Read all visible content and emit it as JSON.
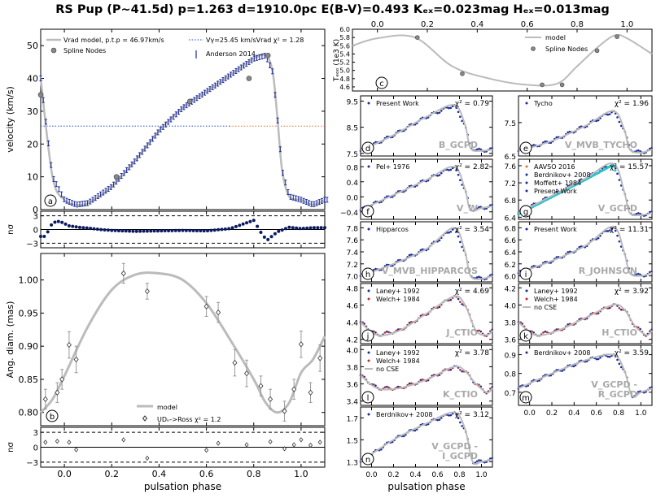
{
  "title": "RS Pup (P~41.5d) p=1.263 d=1910.0pc E(B-V)=0.493 Kₑₓ=0.023mag Hₑₓ=0.013mag",
  "chart_data": [
    {
      "id": "velocity",
      "type": "scatter",
      "panel_letter": "a",
      "xlabel": "",
      "ylabel": "velocity (km/s)",
      "xlim": [
        -0.1,
        1.1
      ],
      "ylim": [
        0,
        55
      ],
      "yticks": [
        0,
        10,
        20,
        30,
        40,
        50
      ],
      "legend": [
        "Vrad model, p.t.p = 46.97km/s",
        "Spline Nodes",
        "Vγ=25.45 km/sVrad χ² = 1.28",
        "Anderson 2014"
      ],
      "gamma_velocity": 25.45,
      "model_x": [
        -0.1,
        -0.05,
        0.0,
        0.05,
        0.1,
        0.2,
        0.3,
        0.4,
        0.5,
        0.6,
        0.7,
        0.8,
        0.85,
        0.88,
        0.9,
        0.92,
        0.95,
        1.0,
        1.05,
        1.1
      ],
      "model_y": [
        40,
        10,
        3,
        1.5,
        2,
        7,
        15,
        24,
        31,
        36,
        41,
        46,
        47,
        42,
        28,
        12,
        4,
        3,
        1.5,
        3
      ],
      "nodes_x": [
        -0.1,
        0.22,
        0.53,
        0.78,
        0.86
      ],
      "nodes_y": [
        35,
        10,
        33,
        40,
        47
      ]
    },
    {
      "id": "velocity_residual",
      "type": "scatter",
      "ylabel": "nσ",
      "xlim": [
        -0.1,
        1.1
      ],
      "ylim": [
        -4,
        4
      ],
      "yticks": [
        -3,
        0,
        3
      ],
      "x": [
        -0.08,
        -0.05,
        -0.02,
        0.02,
        0.06,
        0.1,
        0.15,
        0.2,
        0.3,
        0.4,
        0.5,
        0.6,
        0.7,
        0.8,
        0.84,
        0.86,
        0.9,
        0.95,
        1.0,
        1.05
      ],
      "y": [
        -1.5,
        1.5,
        1.8,
        0.8,
        0.5,
        0.3,
        0.0,
        -0.2,
        -0.4,
        -0.3,
        -0.2,
        -0.3,
        0.2,
        2.0,
        -1.5,
        -2.2,
        -0.5,
        0.5,
        0.2,
        0.4
      ]
    },
    {
      "id": "angular_diameter",
      "type": "scatter",
      "panel_letter": "b",
      "xlabel": "pulsation phase",
      "ylabel": "Ang. diam. (mas)",
      "xlim": [
        -0.1,
        1.1
      ],
      "ylim": [
        0.78,
        1.04
      ],
      "yticks": [
        0.8,
        0.85,
        0.9,
        0.95,
        1.0
      ],
      "xticks": [
        0.0,
        0.2,
        0.4,
        0.6,
        0.8,
        1.0
      ],
      "legend": [
        "model",
        "UDᵢᵣ->Ross χ² = 1.2"
      ],
      "model_x": [
        -0.1,
        -0.05,
        0.0,
        0.1,
        0.2,
        0.3,
        0.4,
        0.5,
        0.6,
        0.7,
        0.8,
        0.85,
        0.9,
        0.95,
        1.0,
        1.05,
        1.1
      ],
      "model_y": [
        0.8,
        0.82,
        0.855,
        0.93,
        0.985,
        1.008,
        1.01,
        1.0,
        0.965,
        0.91,
        0.85,
        0.815,
        0.8,
        0.815,
        0.86,
        0.88,
        0.915
      ],
      "x": [
        -0.08,
        -0.03,
        -0.01,
        0.02,
        0.05,
        0.25,
        0.35,
        0.6,
        0.65,
        0.72,
        0.77,
        0.83,
        0.87,
        0.93,
        0.97,
        1.0,
        1.04,
        1.08
      ],
      "y": [
        0.82,
        0.83,
        0.85,
        0.902,
        0.88,
        1.01,
        0.983,
        0.96,
        0.951,
        0.875,
        0.859,
        0.84,
        0.82,
        0.802,
        0.835,
        0.903,
        0.83,
        0.882
      ],
      "yerr": [
        0.015,
        0.015,
        0.015,
        0.02,
        0.02,
        0.015,
        0.012,
        0.015,
        0.015,
        0.02,
        0.02,
        0.015,
        0.015,
        0.015,
        0.015,
        0.02,
        0.015,
        0.02
      ]
    },
    {
      "id": "angular_residual",
      "type": "scatter",
      "ylabel": "nσ",
      "xlim": [
        -0.1,
        1.1
      ],
      "ylim": [
        -4,
        4
      ],
      "yticks": [
        -3,
        0,
        3
      ],
      "xticks": [
        0.0,
        0.2,
        0.4,
        0.6,
        0.8,
        1.0
      ],
      "xlabel": "pulsation phase",
      "x": [
        -0.08,
        -0.03,
        0.02,
        0.05,
        0.25,
        0.35,
        0.6,
        0.65,
        0.77,
        0.87,
        0.93,
        0.97,
        1.0,
        1.04,
        1.08
      ],
      "y": [
        1.0,
        1.2,
        1.0,
        -0.5,
        1.5,
        -2.2,
        -0.6,
        0.8,
        0.5,
        1.1,
        -0.3,
        0.5,
        1.5,
        0.4,
        1.0
      ]
    },
    {
      "id": "teff",
      "type": "line",
      "panel_letter": "c",
      "ylabel": "Tₑₒₒ (1e3 K)",
      "xlim": [
        -0.1,
        1.1
      ],
      "ylim": [
        4.5,
        6.0
      ],
      "yticks": [
        4.6,
        4.8,
        5.0,
        5.2,
        5.4,
        5.6,
        5.8,
        6.0
      ],
      "xticks": [
        0.0,
        0.2,
        0.4,
        0.6,
        0.8,
        1.0
      ],
      "legend": [
        "model",
        "Spline Nodes"
      ],
      "model_x": [
        -0.1,
        0.0,
        0.15,
        0.3,
        0.45,
        0.6,
        0.72,
        0.8,
        0.88,
        0.95,
        1.0,
        1.1
      ],
      "model_y": [
        5.6,
        5.78,
        5.8,
        5.1,
        4.8,
        4.65,
        4.68,
        5.1,
        5.55,
        5.85,
        5.78,
        5.4
      ],
      "nodes_x": [
        0.16,
        0.34,
        0.66,
        0.74,
        0.88,
        0.96
      ],
      "nodes_y": [
        5.8,
        4.92,
        4.65,
        4.65,
        5.48,
        5.82
      ]
    },
    {
      "id": "B_GCPD",
      "type": "scatter",
      "panel_letter": "d",
      "label": "B_GCPD",
      "legend": [
        "Present Work"
      ],
      "chi2": "χ² = 0.79",
      "ylim": [
        7.4,
        9.7
      ],
      "yticks": [
        7.5,
        8.5,
        9.5
      ],
      "yticklabels": [
        "7.5",
        "8.5",
        "9.5"
      ]
    },
    {
      "id": "V_MVB_TYCHO",
      "type": "scatter",
      "panel_letter": "e",
      "label": "V_MVB_TYCHO",
      "legend": [
        "Tycho"
      ],
      "chi2": "χ² = 1.96",
      "ylim": [
        6.5,
        8.3
      ],
      "yticks": [
        6.5,
        7.5
      ],
      "yticklabels": [
        "6.5",
        "7.5"
      ]
    },
    {
      "id": "V_W",
      "type": "scatter",
      "panel_letter": "f",
      "label": "V_W",
      "legend": [
        "Pel+ 1976"
      ],
      "chi2": "χ² = 2.82",
      "ylim": [
        -0.6,
        1.0
      ],
      "yticks": [
        -0.4,
        0.0,
        0.4,
        0.8
      ],
      "yticklabels": [
        "−0.4",
        "0.0",
        "0.4",
        "0.8"
      ]
    },
    {
      "id": "V_GCPD",
      "type": "scatter",
      "panel_letter": "g",
      "label": "V_GCPD",
      "legend": [
        "AAVSO 2016",
        "Berdnikov+ 2008",
        "Moffett+ 1984",
        "Present Work"
      ],
      "chi2": "χ² = 15.57",
      "ylim": [
        6.35,
        7.75
      ],
      "yticks": [
        6.4,
        6.8,
        7.2,
        7.6
      ],
      "yticklabels": [
        "6.4",
        "6.8",
        "7.2",
        "7.6"
      ]
    },
    {
      "id": "V_MVB_HIPPARCOS",
      "type": "scatter",
      "panel_letter": "h",
      "label": "V_MVB_HIPPARCOS",
      "legend": [
        "Hipparcos"
      ],
      "chi2": "χ² = 3.54",
      "ylim": [
        6.9,
        7.9
      ],
      "yticks": [
        7.0,
        7.2,
        7.4,
        7.6,
        7.8
      ],
      "yticklabels": [
        "7.0",
        "7.2",
        "7.4",
        "7.6",
        "7.8"
      ]
    },
    {
      "id": "R_JOHNSON",
      "type": "scatter",
      "panel_letter": "i",
      "label": "R_JOHNSON",
      "legend": [
        "Present Work"
      ],
      "chi2": "χ² = 11.31",
      "ylim": [
        5.9,
        6.9
      ],
      "yticks": [
        6.0,
        6.2,
        6.4,
        6.6,
        6.8
      ],
      "yticklabels": [
        "6.0",
        "6.2",
        "6.4",
        "6.6",
        "6.8"
      ]
    },
    {
      "id": "J_CTIO",
      "type": "scatter",
      "panel_letter": "j",
      "label": "J_CTIO",
      "legend": [
        "Laney+ 1992",
        "Welch+ 1984"
      ],
      "chi2": "χ² = 4.69",
      "ylim": [
        4.15,
        4.85
      ],
      "yticks": [
        4.2,
        4.4,
        4.6,
        4.8
      ],
      "yticklabels": [
        "4.2",
        "4.4",
        "4.6",
        "4.8"
      ]
    },
    {
      "id": "H_CTIO",
      "type": "scatter",
      "panel_letter": "k",
      "label": "H_CTIO",
      "legend": [
        "Laney+ 1992",
        "Welch+ 1984",
        "no CSE"
      ],
      "chi2": "χ² = 3.92",
      "ylim": [
        3.55,
        4.25
      ],
      "yticks": [
        3.6,
        3.8,
        4.0,
        4.2
      ],
      "yticklabels": [
        "3.6",
        "3.8",
        "4.0",
        "4.2"
      ]
    },
    {
      "id": "K_CTIO",
      "type": "scatter",
      "panel_letter": "l",
      "label": "K_CTIO",
      "legend": [
        "Laney+ 1992",
        "Welch+ 1984",
        "no CSE"
      ],
      "chi2": "χ² = 3.78",
      "ylim": [
        3.35,
        4.05
      ],
      "yticks": [
        3.4,
        3.6,
        3.8,
        4.0
      ],
      "yticklabels": [
        "3.4",
        "3.6",
        "3.8",
        "4.0"
      ]
    },
    {
      "id": "V_GCPD-R_GCPD",
      "type": "scatter",
      "panel_letter": "m",
      "label": "V_GCPD -",
      "label2": "R_GCPD",
      "legend": [
        "Berdnikov+ 2008"
      ],
      "chi2": "χ² = 3.59",
      "ylim": [
        0.63,
        0.95
      ],
      "yticks": [
        0.7,
        0.8,
        0.9
      ],
      "yticklabels": [
        "0.7",
        "0.8",
        "0.9"
      ]
    },
    {
      "id": "V_GCPD-I_GCPD",
      "type": "scatter",
      "panel_letter": "n",
      "label": "V_GCPD -",
      "label2": "I_GCPD",
      "legend": [
        "Berdnikov+ 2008"
      ],
      "chi2": "χ² = 3.12",
      "ylim": [
        1.25,
        1.8
      ],
      "yticks": [
        1.3,
        1.5,
        1.7
      ],
      "yticklabels": [
        "1.3",
        "1.5",
        "1.7"
      ],
      "xlabel": "pulsation phase"
    }
  ],
  "phase_ticks": [
    "0.0",
    "0.2",
    "0.4",
    "0.6",
    "0.8",
    "1.0"
  ],
  "phase_ticks_narrow": [
    "0.0",
    "0.4",
    "0.8"
  ],
  "labels": {
    "xlabel": "pulsation phase"
  },
  "colors": {
    "model": "#bbbbbb",
    "data": "#1a2a9a",
    "gamma": "#4d6fd6",
    "orange": "#d9722b",
    "red": "#c22828",
    "cyan": "#29c4c8",
    "node": "#888888"
  }
}
